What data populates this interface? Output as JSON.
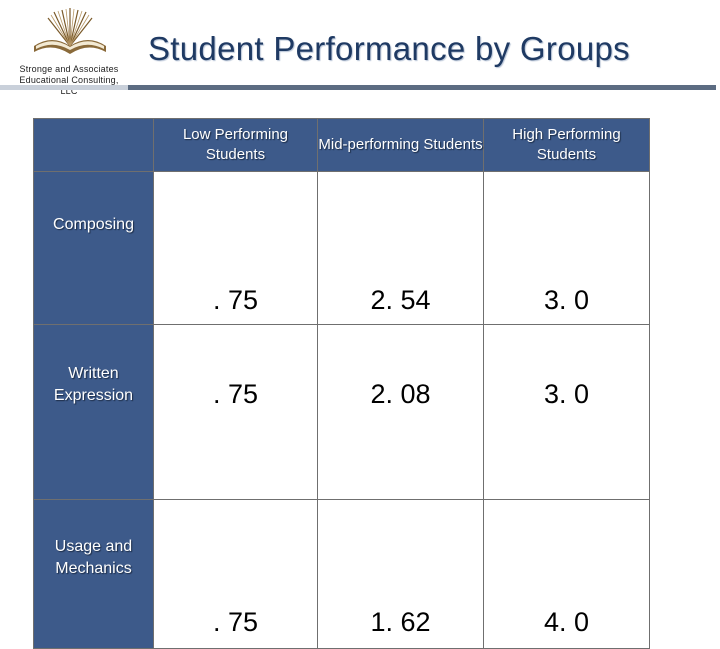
{
  "logo": {
    "line1": "Stronge and Associates",
    "line2": "Educational Consulting,",
    "line3": "LLC"
  },
  "title": "Student Performance by Groups",
  "table": {
    "columns": [
      "Low Performing Students",
      "Mid-performing Students",
      "High Performing Students"
    ],
    "rows": [
      {
        "label": "Composing",
        "values": [
          ". 75",
          "2. 54",
          "3. 0"
        ]
      },
      {
        "label": "Written Expression",
        "values": [
          ". 75",
          "2. 08",
          "3. 0"
        ]
      },
      {
        "label": "Usage and Mechanics",
        "values": [
          ". 75",
          "1. 62",
          "4. 0"
        ]
      }
    ]
  },
  "colors": {
    "header_fill": "#3d5a8a",
    "title_text": "#1f3a63",
    "rule": "#5c6c82"
  }
}
